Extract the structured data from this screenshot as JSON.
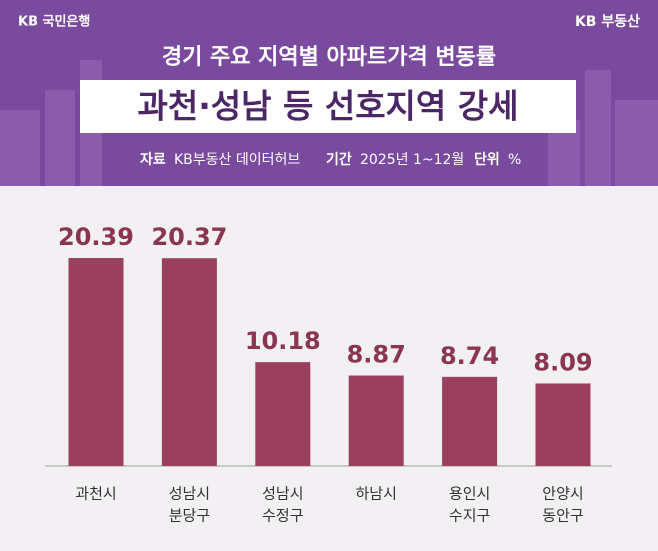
{
  "chart_data": {
    "type": "bar",
    "brand_left": "KB 국민은행",
    "brand_right": "KB 부동산",
    "title": "경기 주요 지역별 아파트가격 변동률",
    "subtitle": "과천·성남 등 선호지역 강세",
    "source_label": "자료",
    "source": "KB부동산 데이터허브",
    "period_label": "기간",
    "period": "2025년 1~12월",
    "unit_label": "단위",
    "unit": "%",
    "categories": [
      [
        "과천시"
      ],
      [
        "성남시",
        "분당구"
      ],
      [
        "성남시",
        "수정구"
      ],
      [
        "하남시"
      ],
      [
        "용인시",
        "수지구"
      ],
      [
        "안양시",
        "동안구"
      ]
    ],
    "values": [
      20.39,
      20.37,
      10.18,
      8.87,
      8.74,
      8.09
    ],
    "color": "#9a3f5d"
  }
}
